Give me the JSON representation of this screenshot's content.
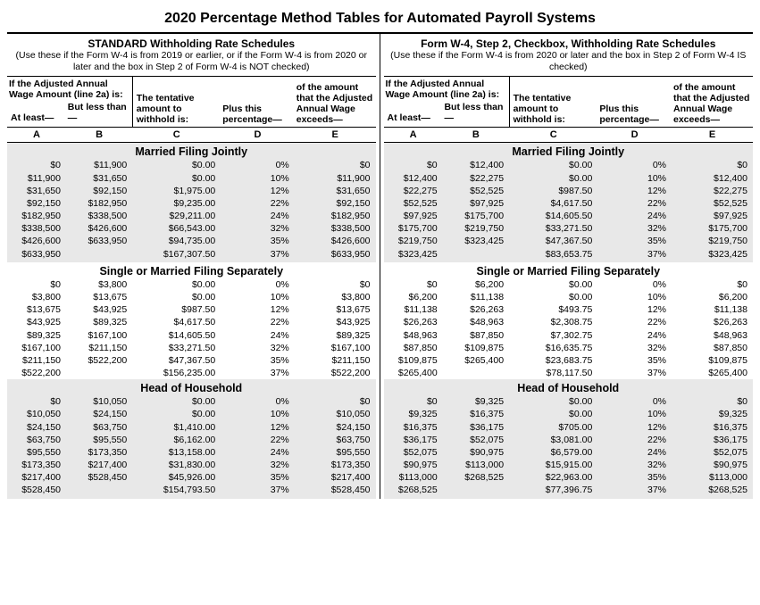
{
  "title": "2020 Percentage Method Tables for Automated Payroll Systems",
  "left": {
    "sched_title": "STANDARD Withholding Rate Schedules",
    "sched_sub": "(Use these if the Form W-4 is from 2019 or earlier, or if the Form W-4 is from 2020 or later and the box in Step 2 of Form W-4 is NOT checked)"
  },
  "right": {
    "sched_title": "Form W-4, Step 2, Checkbox, Withholding Rate Schedules",
    "sched_sub": "(Use these if the Form W-4 is from 2020 or later and the box in Step 2 of Form W-4 IS checked)"
  },
  "hdr": {
    "adj": "If the Adjusted Annual Wage Amount (line 2a) is:",
    "atleast": "At least—",
    "butless": "But less than—",
    "tent": "The tentative amount to withhold is:",
    "plus": "Plus this percentage—",
    "exceeds": "of the amount that the Adjusted Annual Wage exceeds—"
  },
  "letters": [
    "A",
    "B",
    "C",
    "D",
    "E"
  ],
  "sections": [
    {
      "title": "Married Filing Jointly",
      "striped": true,
      "left_rows": [
        [
          "$0",
          "$11,900",
          "$0.00",
          "0%",
          "$0"
        ],
        [
          "$11,900",
          "$31,650",
          "$0.00",
          "10%",
          "$11,900"
        ],
        [
          "$31,650",
          "$92,150",
          "$1,975.00",
          "12%",
          "$31,650"
        ],
        [
          "$92,150",
          "$182,950",
          "$9,235.00",
          "22%",
          "$92,150"
        ],
        [
          "$182,950",
          "$338,500",
          "$29,211.00",
          "24%",
          "$182,950"
        ],
        [
          "$338,500",
          "$426,600",
          "$66,543.00",
          "32%",
          "$338,500"
        ],
        [
          "$426,600",
          "$633,950",
          "$94,735.00",
          "35%",
          "$426,600"
        ],
        [
          "$633,950",
          "",
          "$167,307.50",
          "37%",
          "$633,950"
        ]
      ],
      "right_rows": [
        [
          "$0",
          "$12,400",
          "$0.00",
          "0%",
          "$0"
        ],
        [
          "$12,400",
          "$22,275",
          "$0.00",
          "10%",
          "$12,400"
        ],
        [
          "$22,275",
          "$52,525",
          "$987.50",
          "12%",
          "$22,275"
        ],
        [
          "$52,525",
          "$97,925",
          "$4,617.50",
          "22%",
          "$52,525"
        ],
        [
          "$97,925",
          "$175,700",
          "$14,605.50",
          "24%",
          "$97,925"
        ],
        [
          "$175,700",
          "$219,750",
          "$33,271.50",
          "32%",
          "$175,700"
        ],
        [
          "$219,750",
          "$323,425",
          "$47,367.50",
          "35%",
          "$219,750"
        ],
        [
          "$323,425",
          "",
          "$83,653.75",
          "37%",
          "$323,425"
        ]
      ]
    },
    {
      "title": "Single or Married Filing Separately",
      "striped": false,
      "left_rows": [
        [
          "$0",
          "$3,800",
          "$0.00",
          "0%",
          "$0"
        ],
        [
          "$3,800",
          "$13,675",
          "$0.00",
          "10%",
          "$3,800"
        ],
        [
          "$13,675",
          "$43,925",
          "$987.50",
          "12%",
          "$13,675"
        ],
        [
          "$43,925",
          "$89,325",
          "$4,617.50",
          "22%",
          "$43,925"
        ],
        [
          "$89,325",
          "$167,100",
          "$14,605.50",
          "24%",
          "$89,325"
        ],
        [
          "$167,100",
          "$211,150",
          "$33,271.50",
          "32%",
          "$167,100"
        ],
        [
          "$211,150",
          "$522,200",
          "$47,367.50",
          "35%",
          "$211,150"
        ],
        [
          "$522,200",
          "",
          "$156,235.00",
          "37%",
          "$522,200"
        ]
      ],
      "right_rows": [
        [
          "$0",
          "$6,200",
          "$0.00",
          "0%",
          "$0"
        ],
        [
          "$6,200",
          "$11,138",
          "$0.00",
          "10%",
          "$6,200"
        ],
        [
          "$11,138",
          "$26,263",
          "$493.75",
          "12%",
          "$11,138"
        ],
        [
          "$26,263",
          "$48,963",
          "$2,308.75",
          "22%",
          "$26,263"
        ],
        [
          "$48,963",
          "$87,850",
          "$7,302.75",
          "24%",
          "$48,963"
        ],
        [
          "$87,850",
          "$109,875",
          "$16,635.75",
          "32%",
          "$87,850"
        ],
        [
          "$109,875",
          "$265,400",
          "$23,683.75",
          "35%",
          "$109,875"
        ],
        [
          "$265,400",
          "",
          "$78,117.50",
          "37%",
          "$265,400"
        ]
      ]
    },
    {
      "title": "Head of Household",
      "striped": true,
      "left_rows": [
        [
          "$0",
          "$10,050",
          "$0.00",
          "0%",
          "$0"
        ],
        [
          "$10,050",
          "$24,150",
          "$0.00",
          "10%",
          "$10,050"
        ],
        [
          "$24,150",
          "$63,750",
          "$1,410.00",
          "12%",
          "$24,150"
        ],
        [
          "$63,750",
          "$95,550",
          "$6,162.00",
          "22%",
          "$63,750"
        ],
        [
          "$95,550",
          "$173,350",
          "$13,158.00",
          "24%",
          "$95,550"
        ],
        [
          "$173,350",
          "$217,400",
          "$31,830.00",
          "32%",
          "$173,350"
        ],
        [
          "$217,400",
          "$528,450",
          "$45,926.00",
          "35%",
          "$217,400"
        ],
        [
          "$528,450",
          "",
          "$154,793.50",
          "37%",
          "$528,450"
        ]
      ],
      "right_rows": [
        [
          "$0",
          "$9,325",
          "$0.00",
          "0%",
          "$0"
        ],
        [
          "$9,325",
          "$16,375",
          "$0.00",
          "10%",
          "$9,325"
        ],
        [
          "$16,375",
          "$36,175",
          "$705.00",
          "12%",
          "$16,375"
        ],
        [
          "$36,175",
          "$52,075",
          "$3,081.00",
          "22%",
          "$36,175"
        ],
        [
          "$52,075",
          "$90,975",
          "$6,579.00",
          "24%",
          "$52,075"
        ],
        [
          "$90,975",
          "$113,000",
          "$15,915.00",
          "32%",
          "$90,975"
        ],
        [
          "$113,000",
          "$268,525",
          "$22,963.00",
          "35%",
          "$113,000"
        ],
        [
          "$268,525",
          "",
          "$77,396.75",
          "37%",
          "$268,525"
        ]
      ]
    }
  ]
}
